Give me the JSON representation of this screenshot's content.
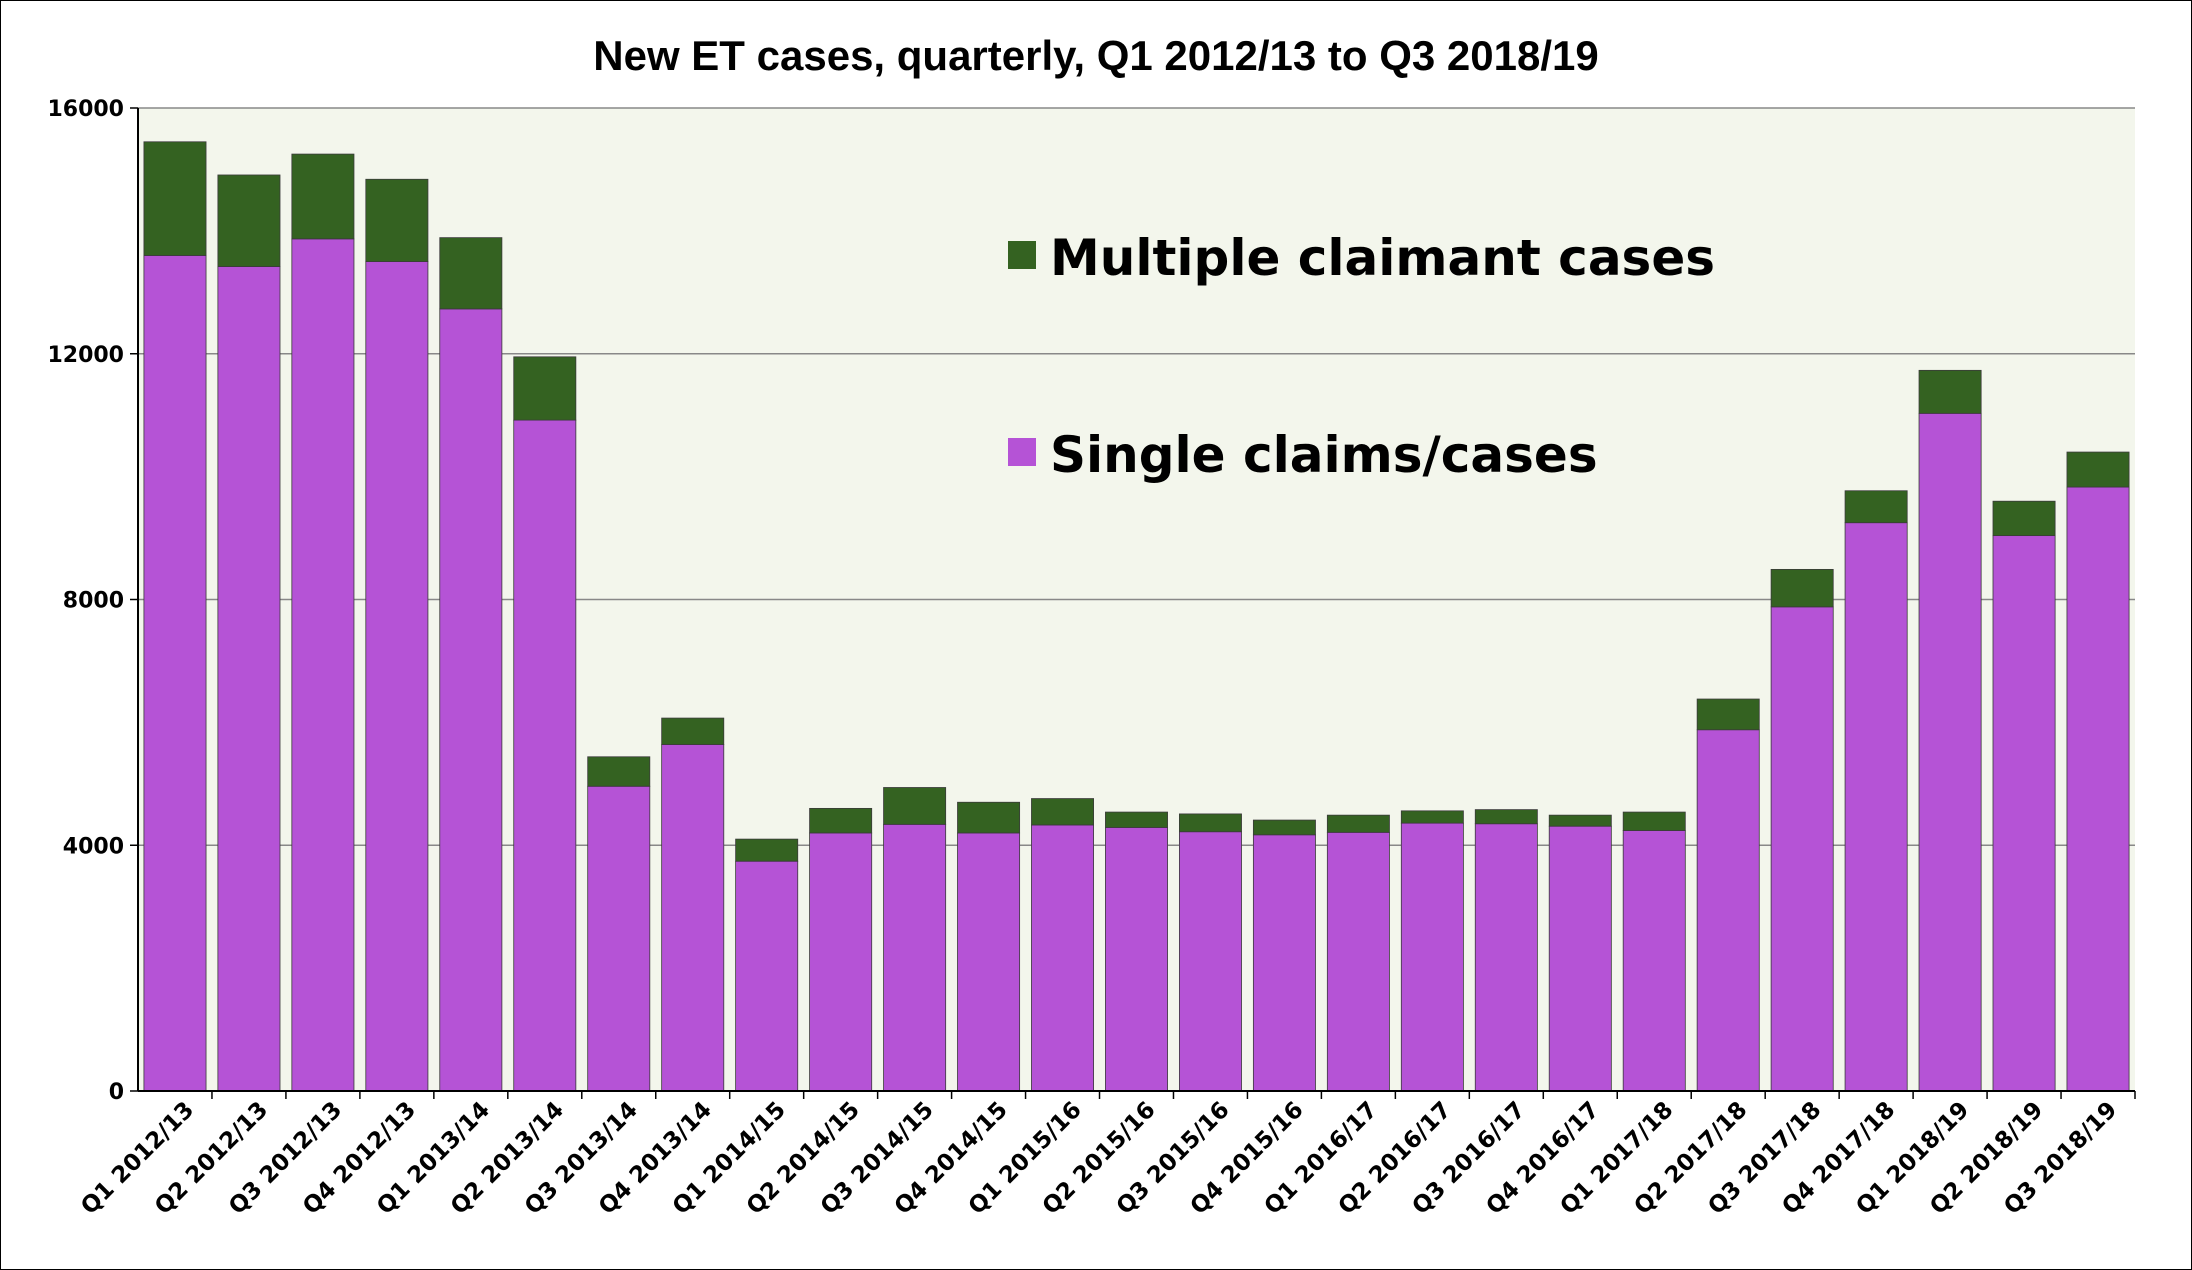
{
  "chart_data": {
    "type": "bar",
    "stacked": true,
    "title": "New ET cases, quarterly, Q1 2012/13 to Q3 2018/19",
    "xlabel": "",
    "ylabel": "",
    "ylim": [
      0,
      16000
    ],
    "yticks": [
      "0",
      "4000",
      "8000",
      "12000",
      "16000"
    ],
    "grid": true,
    "legend_position": "upper-right (inside plot)",
    "categories": [
      "Q1 2012/13",
      "Q2 2012/13",
      "Q3 2012/13",
      "Q4 2012/13",
      "Q1 2013/14",
      "Q2 2013/14",
      "Q3 2013/14",
      "Q4 2013/14",
      "Q1 2014/15",
      "Q2 2014/15",
      "Q3 2014/15",
      "Q4 2014/15",
      "Q1 2015/16",
      "Q2 2015/16",
      "Q3 2015/16",
      "Q4 2015/16",
      "Q1 2016/17",
      "Q2 2016/17",
      "Q3 2016/17",
      "Q4 2016/17",
      "Q1 2017/18",
      "Q2 2017/18",
      "Q3 2017/18",
      "Q4 2017/18",
      "Q1 2018/19",
      "Q2 2018/19",
      "Q3 2018/19"
    ],
    "series": [
      {
        "name": "Single claims/cases",
        "color": "#b553d6",
        "values": [
          13600,
          13420,
          13870,
          13500,
          12730,
          10920,
          4960,
          5640,
          3740,
          4200,
          4340,
          4200,
          4330,
          4290,
          4220,
          4170,
          4210,
          4360,
          4350,
          4310,
          4240,
          5880,
          7880,
          9250,
          11030,
          9040,
          9830
        ]
      },
      {
        "name": "Multiple claimant cases",
        "color": "#346221",
        "values": [
          1850,
          1490,
          1380,
          1340,
          1160,
          1030,
          480,
          430,
          360,
          400,
          600,
          500,
          430,
          250,
          290,
          240,
          280,
          200,
          230,
          180,
          300,
          500,
          610,
          520,
          700,
          560,
          570
        ]
      }
    ],
    "colors": {
      "plot_background": "#f3f6ec",
      "gridline": "#888888"
    }
  }
}
